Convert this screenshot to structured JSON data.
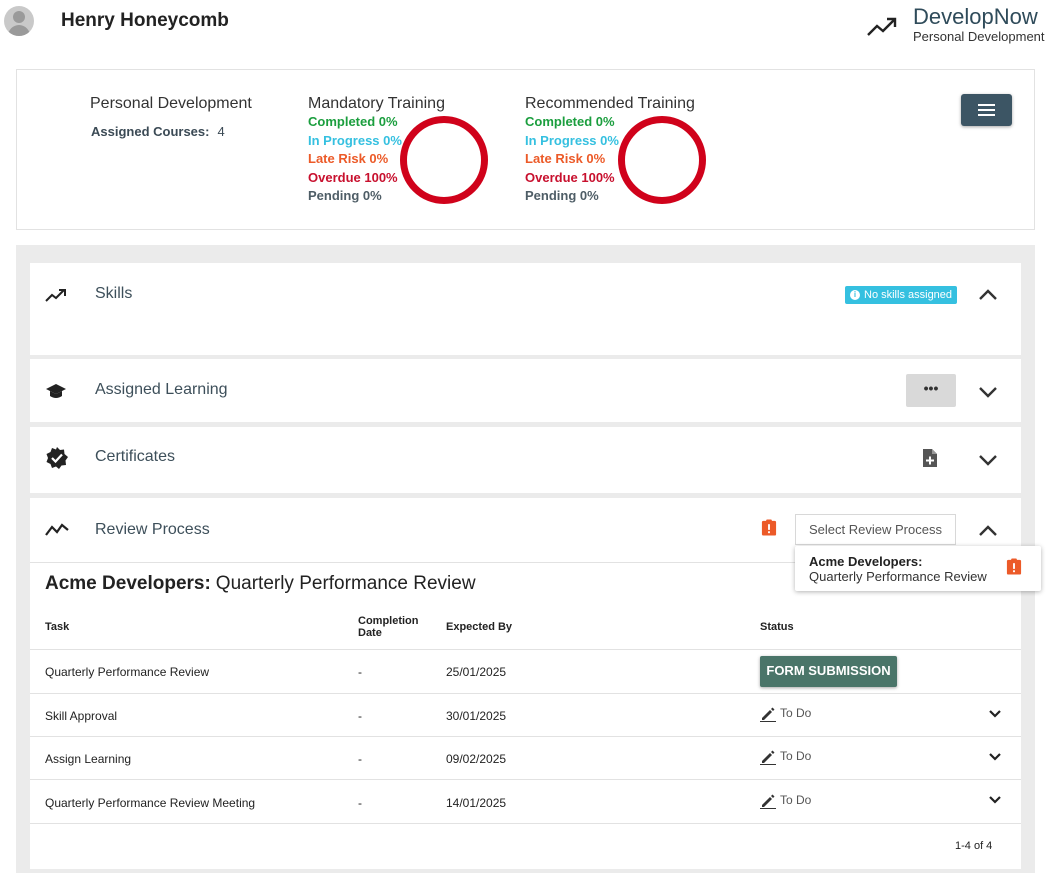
{
  "user": {
    "name": "Henry Honeycomb"
  },
  "brand": {
    "name": "DevelopNow",
    "subtitle": "Personal Development",
    "icon": "trend-up-icon"
  },
  "summary": {
    "title": "Personal Development",
    "assigned_label": "Assigned Courses:",
    "assigned_value": "4",
    "mandatory": {
      "title": "Mandatory Training",
      "completed": "Completed 0%",
      "in_progress": "In Progress 0%",
      "late_risk": "Late Risk 0%",
      "overdue": "Overdue 100%",
      "pending": "Pending 0%",
      "overdue_fraction": 1.0
    },
    "recommended": {
      "title": "Recommended Training",
      "completed": "Completed 0%",
      "in_progress": "In Progress 0%",
      "late_risk": "Late Risk 0%",
      "overdue": "Overdue 100%",
      "pending": "Pending 0%",
      "overdue_fraction": 1.0
    },
    "colors": {
      "completed": "#1b9e3e",
      "in_progress": "#35c0e0",
      "late_risk": "#ec5a28",
      "overdue": "#c8102e",
      "pending": "#4e5d66"
    }
  },
  "sections": {
    "skills": {
      "title": "Skills",
      "badge": "No skills assigned",
      "icon": "trend-up-icon"
    },
    "assigned_learning": {
      "title": "Assigned Learning",
      "more": "•••",
      "icon": "graduation-cap-icon"
    },
    "certificates": {
      "title": "Certificates",
      "icon": "certificate-badge-icon"
    },
    "review": {
      "title": "Review Process",
      "icon": "line-chart-icon",
      "select_label": "Select Review Process",
      "popup": {
        "org": "Acme Developers:",
        "name": "Quarterly Performance Review"
      },
      "heading_org": "Acme Developers:",
      "heading_name": "Quarterly Performance Review",
      "columns": {
        "task": "Task",
        "completion_1": "Completion",
        "completion_2": "Date",
        "expected": "Expected By",
        "status": "Status"
      },
      "rows": [
        {
          "task": "Quarterly Performance Review",
          "completion": "-",
          "expected": "25/01/2025",
          "status": "FORM SUBMISSION"
        },
        {
          "task": "Skill Approval",
          "completion": "-",
          "expected": "30/01/2025",
          "status": "To Do"
        },
        {
          "task": "Assign Learning",
          "completion": "-",
          "expected": "09/02/2025",
          "status": "To Do"
        },
        {
          "task": "Quarterly Performance Review Meeting",
          "completion": "-",
          "expected": "14/01/2025",
          "status": "To Do"
        }
      ],
      "pager": "1-4 of 4"
    }
  }
}
